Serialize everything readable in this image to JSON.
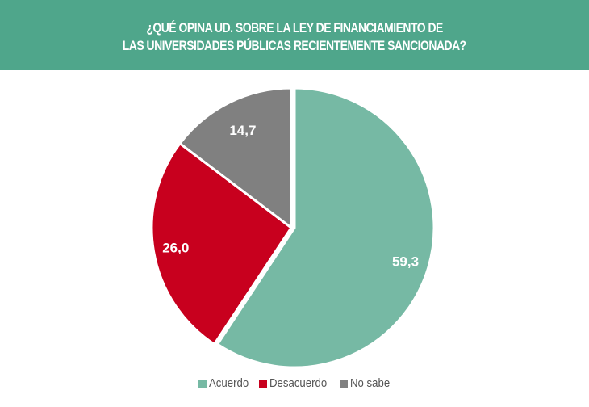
{
  "header": {
    "title_lines": [
      "¿QUÉ OPINA UD. SOBRE LA LEY DE FINANCIAMIENTO DE",
      "LAS UNIVERSIDADES PÚBLICAS RECIENTEMENTE SANCIONADA?"
    ]
  },
  "chart_data": {
    "type": "pie",
    "title": "¿QUÉ OPINA UD. SOBRE LA LEY DE FINANCIAMIENTO DE LAS UNIVERSIDADES PÚBLICAS RECIENTEMENTE SANCIONADA?",
    "categories": [
      "Acuerdo",
      "Desacuerdo",
      "No sabe"
    ],
    "values": [
      59.3,
      26.0,
      14.7
    ],
    "data_labels": [
      "59,3",
      "26,0",
      "14,7"
    ],
    "colors": [
      "#76b9a4",
      "#c8001e",
      "#808080"
    ],
    "legend_position": "bottom",
    "start": "top, clockwise"
  }
}
